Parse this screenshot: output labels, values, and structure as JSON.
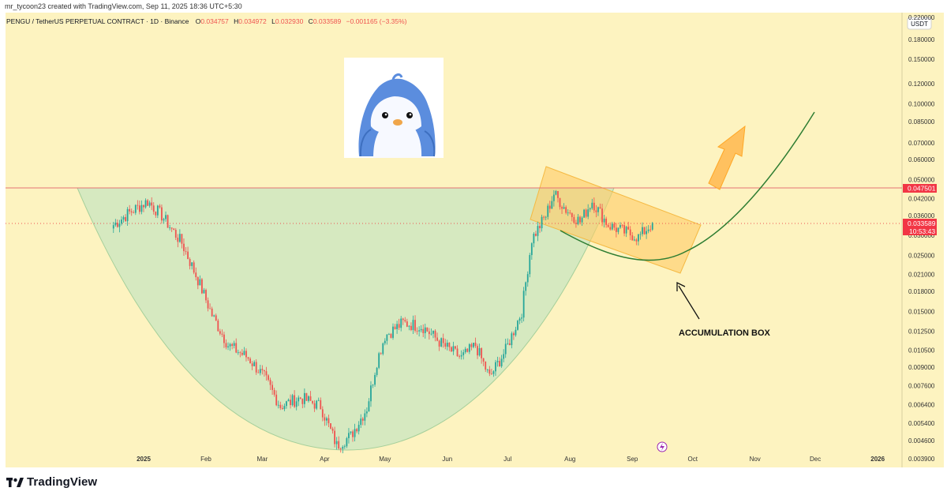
{
  "header": {
    "creator": "mr_tycoon23 created with TradingView.com, Sep 11, 2025 18:36 UTC+5:30",
    "symbol": "PENGU / TetherUS PERPETUAL CONTRACT · 1D · Binance",
    "o_label": "O",
    "o_value": "0.034757",
    "h_label": "H",
    "h_value": "0.034972",
    "l_label": "L",
    "l_value": "0.032930",
    "c_label": "C",
    "c_value": "0.033589",
    "change": "−0.001165 (−3.35%)"
  },
  "currency": "USDT",
  "price_axis": {
    "ticks": [
      "0.220000",
      "0.180000",
      "0.150000",
      "0.120000",
      "0.100000",
      "0.085000",
      "0.070000",
      "0.060000",
      "0.050000",
      "0.042000",
      "0.036000",
      "0.030000",
      "0.025000",
      "0.021000",
      "0.018000",
      "0.015000",
      "0.012500",
      "0.010500",
      "0.009000",
      "0.007600",
      "0.006400",
      "0.005400",
      "0.004600",
      "0.003900"
    ],
    "resistance_label": "0.047501",
    "last_price_label": "0.033589",
    "countdown_label": "10:53:43"
  },
  "time_axis": {
    "ticks": [
      "2025",
      "Feb",
      "Mar",
      "Apr",
      "May",
      "Jun",
      "Jul",
      "Aug",
      "Sep",
      "Oct",
      "Nov",
      "Dec",
      "2026"
    ]
  },
  "annotation": {
    "text": "ACCUMULATION BOX"
  },
  "logo": {
    "text": "TradingView"
  },
  "colors": {
    "background": "#fdf3c0",
    "up": "#26a69a",
    "down": "#ef5350",
    "cup_fill": "#c8e6c0",
    "box_fill": "#ffcc66",
    "projection": "#2e7d32",
    "arrow": "#ffb74d",
    "level_line": "#e57373",
    "price_tag": "#f23645"
  },
  "chart_data": {
    "type": "candlestick",
    "title": "PENGU / TetherUS PERPETUAL CONTRACT · 1D · Binance",
    "x_ticks": [
      "2025",
      "Feb",
      "Mar",
      "Apr",
      "May",
      "Jun",
      "Jul",
      "Aug",
      "Sep",
      "Oct",
      "Nov",
      "Dec",
      "2026"
    ],
    "y_scale": "log",
    "ylim": [
      0.0036,
      0.23
    ],
    "key_points": [
      {
        "date": "2024-12-17",
        "close": 0.033
      },
      {
        "date": "2024-12-25",
        "close": 0.037
      },
      {
        "date": "2025-01-03",
        "close": 0.041
      },
      {
        "date": "2025-01-10",
        "close": 0.036
      },
      {
        "date": "2025-01-20",
        "close": 0.028
      },
      {
        "date": "2025-01-28",
        "close": 0.02
      },
      {
        "date": "2025-02-04",
        "close": 0.0145
      },
      {
        "date": "2025-02-12",
        "close": 0.011
      },
      {
        "date": "2025-02-22",
        "close": 0.0098
      },
      {
        "date": "2025-03-02",
        "close": 0.0082
      },
      {
        "date": "2025-03-10",
        "close": 0.0063
      },
      {
        "date": "2025-03-20",
        "close": 0.0068
      },
      {
        "date": "2025-03-30",
        "close": 0.0063
      },
      {
        "date": "2025-04-07",
        "close": 0.0044
      },
      {
        "date": "2025-04-14",
        "close": 0.0048
      },
      {
        "date": "2025-04-22",
        "close": 0.0062
      },
      {
        "date": "2025-04-27",
        "close": 0.0095
      },
      {
        "date": "2025-05-01",
        "close": 0.012
      },
      {
        "date": "2025-05-10",
        "close": 0.0135
      },
      {
        "date": "2025-05-20",
        "close": 0.013
      },
      {
        "date": "2025-05-30",
        "close": 0.011
      },
      {
        "date": "2025-06-08",
        "close": 0.0098
      },
      {
        "date": "2025-06-15",
        "close": 0.011
      },
      {
        "date": "2025-06-22",
        "close": 0.0082
      },
      {
        "date": "2025-06-30",
        "close": 0.0105
      },
      {
        "date": "2025-07-08",
        "close": 0.015
      },
      {
        "date": "2025-07-13",
        "close": 0.029
      },
      {
        "date": "2025-07-20",
        "close": 0.036
      },
      {
        "date": "2025-07-24",
        "close": 0.044
      },
      {
        "date": "2025-07-30",
        "close": 0.038
      },
      {
        "date": "2025-08-06",
        "close": 0.034
      },
      {
        "date": "2025-08-12",
        "close": 0.041
      },
      {
        "date": "2025-08-20",
        "close": 0.033
      },
      {
        "date": "2025-08-28",
        "close": 0.031
      },
      {
        "date": "2025-09-04",
        "close": 0.0295
      },
      {
        "date": "2025-09-11",
        "close": 0.033589
      }
    ],
    "resistance_level": 0.047501,
    "last_price": 0.033589,
    "annotations": [
      "ACCUMULATION BOX"
    ]
  }
}
